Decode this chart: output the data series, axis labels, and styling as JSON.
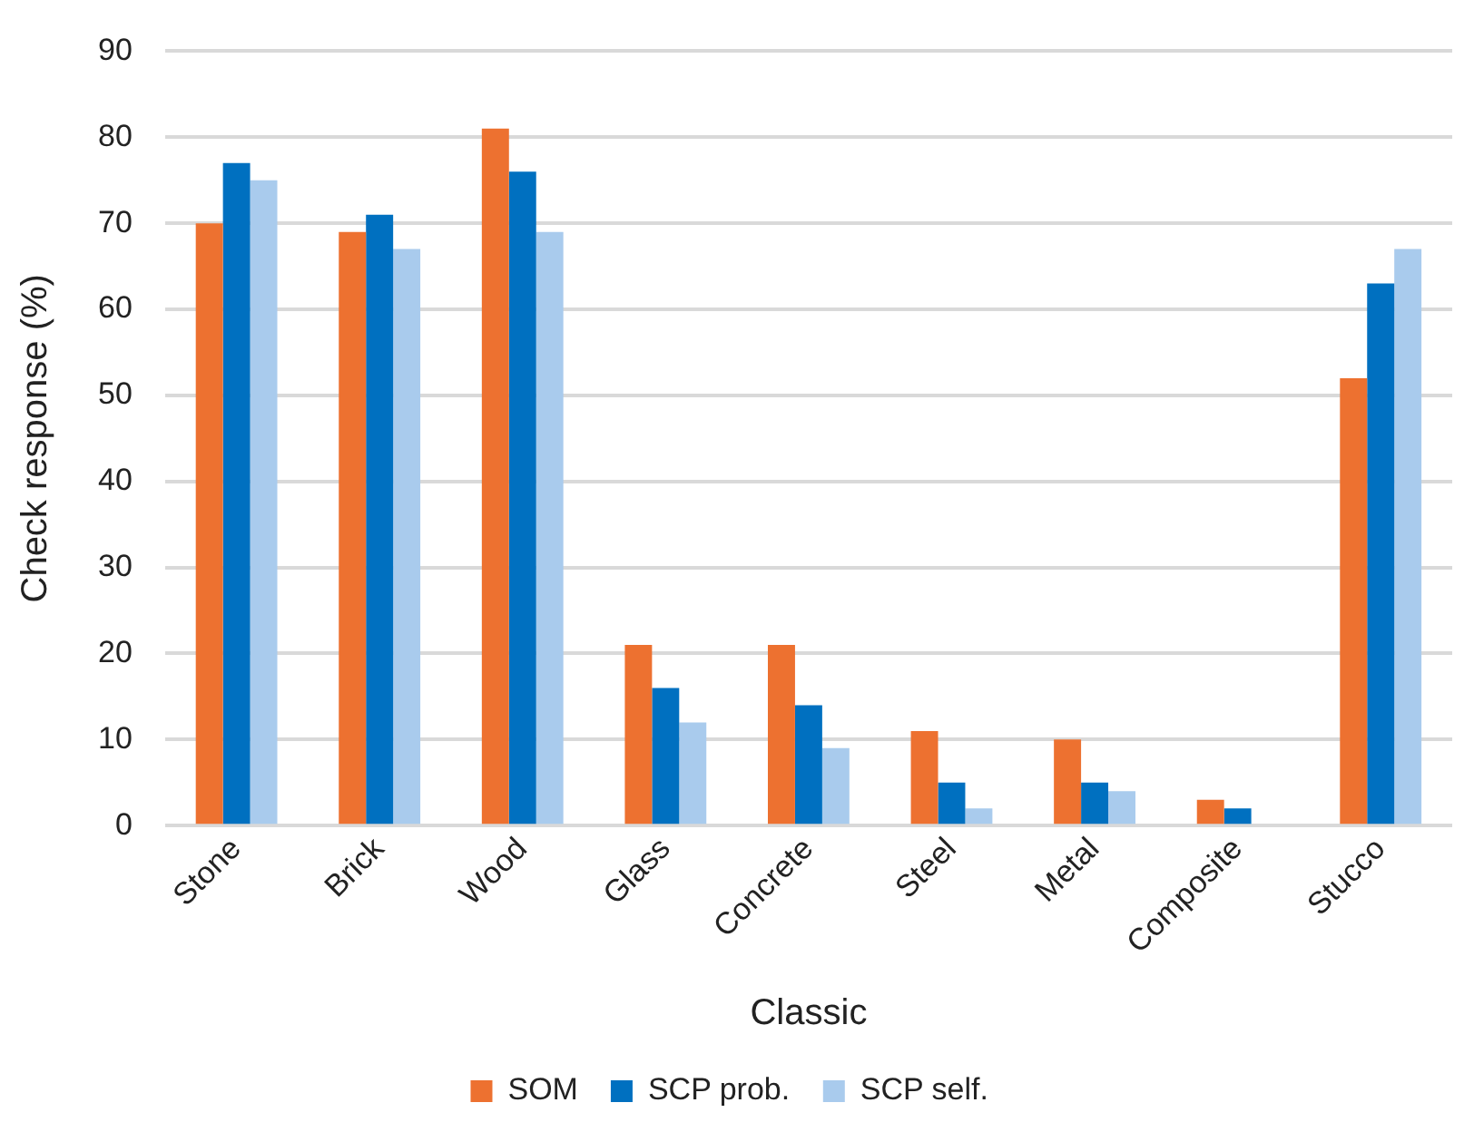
{
  "chart_data": {
    "type": "bar",
    "xlabel": "Classic",
    "ylabel": "Check response (%)",
    "categories": [
      "Stone",
      "Brick",
      "Wood",
      "Glass",
      "Concrete",
      "Steel",
      "Metal",
      "Composite",
      "Stucco"
    ],
    "series": [
      {
        "name": "SOM",
        "color": "#ed7130",
        "values": [
          70,
          69,
          81,
          21,
          21,
          11,
          10,
          3,
          52
        ]
      },
      {
        "name": "SCP prob.",
        "color": "#0070c0",
        "values": [
          77,
          71,
          76,
          16,
          14,
          5,
          5,
          2,
          63
        ]
      },
      {
        "name": "SCP self.",
        "color": "#a9cbed",
        "values": [
          75,
          67,
          69,
          12,
          9,
          2,
          4,
          0,
          67
        ]
      }
    ],
    "ylim": [
      0,
      90
    ],
    "yticks": [
      0,
      10,
      20,
      30,
      40,
      50,
      60,
      70,
      80,
      90
    ],
    "grid": "y",
    "legend": "bottom"
  }
}
